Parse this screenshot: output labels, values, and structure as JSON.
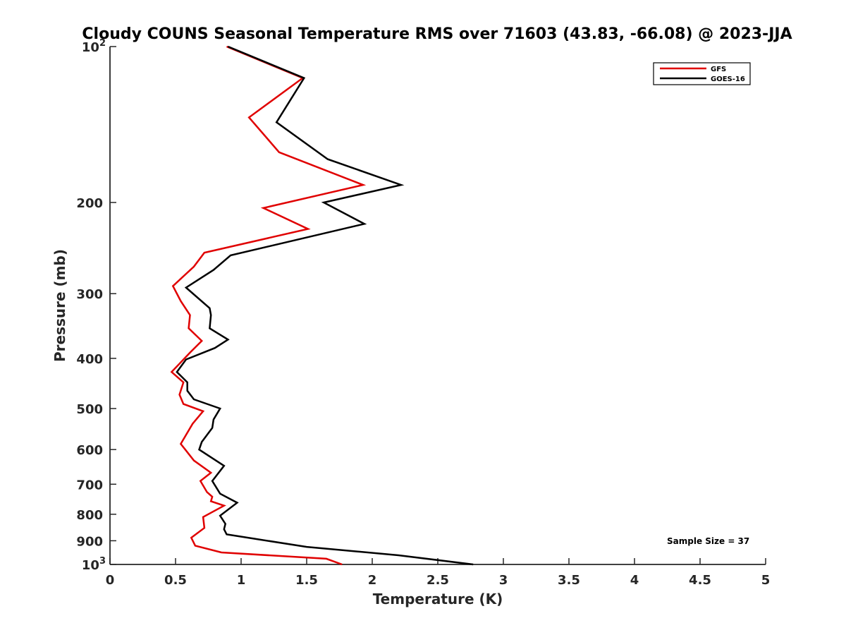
{
  "chart_data": {
    "type": "line",
    "title": "Cloudy COUNS Seasonal Temperature RMS over 71603 (43.83, -66.08) @ 2023-JJA",
    "xlabel": "Temperature (K)",
    "ylabel": "Pressure (mb)",
    "xlim": [
      0,
      5
    ],
    "ylim": [
      100,
      1000
    ],
    "y_scale": "log",
    "y_reversed": true,
    "x_ticks": [
      {
        "value": 0,
        "label": "0"
      },
      {
        "value": 0.5,
        "label": "0.5"
      },
      {
        "value": 1,
        "label": "1"
      },
      {
        "value": 1.5,
        "label": "1.5"
      },
      {
        "value": 2,
        "label": "2"
      },
      {
        "value": 2.5,
        "label": "2.5"
      },
      {
        "value": 3,
        "label": "3"
      },
      {
        "value": 3.5,
        "label": "3.5"
      },
      {
        "value": 4,
        "label": "4"
      },
      {
        "value": 4.5,
        "label": "4.5"
      },
      {
        "value": 5,
        "label": "5"
      }
    ],
    "y_ticks": [
      {
        "value": 100,
        "label": "10",
        "sup": "2"
      },
      {
        "value": 200,
        "label": "200"
      },
      {
        "value": 300,
        "label": "300"
      },
      {
        "value": 400,
        "label": "400"
      },
      {
        "value": 500,
        "label": "500"
      },
      {
        "value": 600,
        "label": "600"
      },
      {
        "value": 700,
        "label": "700"
      },
      {
        "value": 800,
        "label": "800"
      },
      {
        "value": 900,
        "label": "900"
      },
      {
        "value": 1000,
        "label": "10",
        "sup": "3"
      }
    ],
    "legend_position": "top-right",
    "series": [
      {
        "name": "GFS",
        "color": "#e00000",
        "points": [
          [
            0.89,
            100
          ],
          [
            1.47,
            115
          ],
          [
            1.06,
            137
          ],
          [
            1.29,
            160
          ],
          [
            1.93,
            185
          ],
          [
            1.17,
            205
          ],
          [
            1.51,
            225
          ],
          [
            0.72,
            250
          ],
          [
            0.64,
            266
          ],
          [
            0.48,
            290
          ],
          [
            0.54,
            310
          ],
          [
            0.61,
            330
          ],
          [
            0.6,
            350
          ],
          [
            0.7,
            370
          ],
          [
            0.61,
            390
          ],
          [
            0.47,
            425
          ],
          [
            0.56,
            445
          ],
          [
            0.53,
            470
          ],
          [
            0.56,
            490
          ],
          [
            0.71,
            506
          ],
          [
            0.63,
            535
          ],
          [
            0.54,
            585
          ],
          [
            0.64,
            630
          ],
          [
            0.77,
            665
          ],
          [
            0.69,
            690
          ],
          [
            0.74,
            725
          ],
          [
            0.78,
            740
          ],
          [
            0.77,
            755
          ],
          [
            0.87,
            770
          ],
          [
            0.71,
            810
          ],
          [
            0.72,
            850
          ],
          [
            0.62,
            888
          ],
          [
            0.65,
            920
          ],
          [
            0.85,
            948
          ],
          [
            1.65,
            975
          ],
          [
            1.77,
            1000
          ]
        ]
      },
      {
        "name": "GOES-16",
        "color": "#000000",
        "points": [
          [
            0.9,
            100
          ],
          [
            1.48,
            115
          ],
          [
            1.27,
            140
          ],
          [
            1.66,
            165
          ],
          [
            2.22,
            185
          ],
          [
            1.63,
            200
          ],
          [
            1.94,
            220
          ],
          [
            0.92,
            253
          ],
          [
            0.79,
            270
          ],
          [
            0.58,
            292
          ],
          [
            0.76,
            320
          ],
          [
            0.77,
            330
          ],
          [
            0.76,
            350
          ],
          [
            0.9,
            368
          ],
          [
            0.8,
            382
          ],
          [
            0.58,
            402
          ],
          [
            0.51,
            425
          ],
          [
            0.59,
            445
          ],
          [
            0.59,
            462
          ],
          [
            0.64,
            480
          ],
          [
            0.84,
            500
          ],
          [
            0.79,
            525
          ],
          [
            0.78,
            545
          ],
          [
            0.7,
            580
          ],
          [
            0.68,
            600
          ],
          [
            0.87,
            645
          ],
          [
            0.78,
            690
          ],
          [
            0.84,
            730
          ],
          [
            0.97,
            760
          ],
          [
            0.84,
            805
          ],
          [
            0.88,
            835
          ],
          [
            0.87,
            855
          ],
          [
            0.89,
            875
          ],
          [
            1.5,
            925
          ],
          [
            2.2,
            960
          ],
          [
            2.77,
            1000
          ]
        ]
      }
    ],
    "annotation": "Sample Size = 37"
  }
}
